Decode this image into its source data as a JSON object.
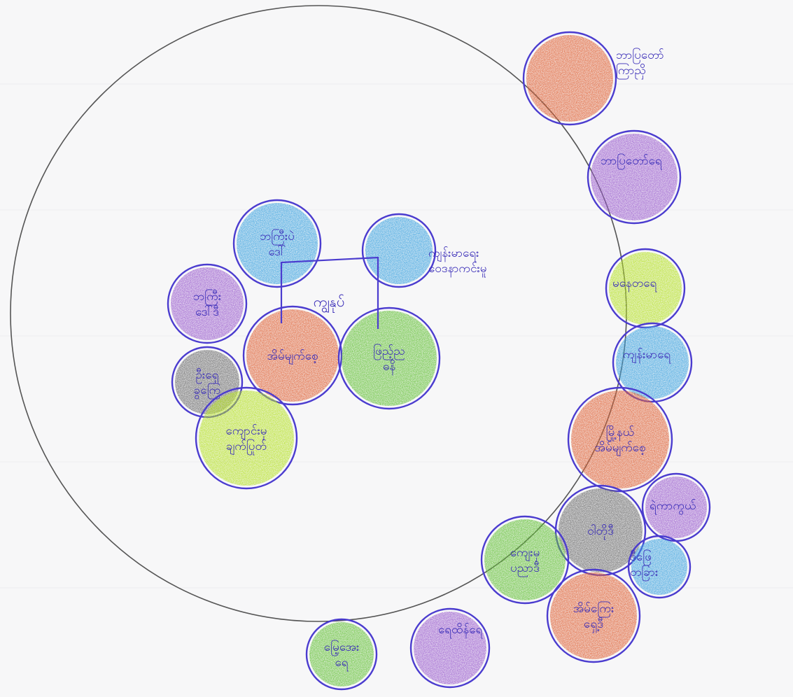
{
  "diagram": {
    "type": "ecomap",
    "center_label": "ကျွနုပ်",
    "colors": {
      "orange": "#e0653a",
      "purple": "#9c5fcf",
      "blue": "#3fa4e0",
      "green": "#66c23a",
      "lime": "#b7e22a",
      "gray": "#6e6e6e",
      "outline": "#4b3ccf",
      "boundary": "#555555"
    },
    "inside_nodes": [
      {
        "id": "n1",
        "label": "ဘကြီးပဲ ဒေါ်",
        "color": "blue"
      },
      {
        "id": "n2",
        "label": "ဘကြီး ဒေါ်ဒီ",
        "color": "purple"
      },
      {
        "id": "n3",
        "label": "အိမ်မျက်စေ့",
        "color": "orange"
      },
      {
        "id": "n4",
        "label": "ဖြည့်ည ဓနိ",
        "color": "green"
      },
      {
        "id": "n5",
        "label": "ဦးရှေ ခွကြေ",
        "color": "gray"
      },
      {
        "id": "n6",
        "label": "ကျောင်းမှ ချက်ပြုတ်",
        "color": "lime"
      },
      {
        "id": "n7",
        "label": "",
        "color": "blue"
      }
    ],
    "side_labels": [
      {
        "id": "n7",
        "text": "ကျန်းမာရေး ဝေဒနာကင်းမူ"
      }
    ],
    "outside_nodes": [
      {
        "id": "o1",
        "label": "",
        "side_text": "ဘာပြတော် ကြာညှိ",
        "color": "orange"
      },
      {
        "id": "o2",
        "label": "",
        "side_text": "ဘာပြတော်ရေ",
        "color": "purple"
      },
      {
        "id": "o3",
        "label": "",
        "side_text": "မနေတရေ",
        "color": "lime"
      },
      {
        "id": "o4",
        "label": "",
        "side_text": "ကျန်းမာရေ",
        "color": "blue"
      },
      {
        "id": "o5",
        "label": "မြို့နယ် အိမ်မျက်စေ့",
        "side_text": "",
        "color": "orange"
      },
      {
        "id": "o6",
        "label": "ဝါတိုဒီ",
        "side_text": "",
        "color": "gray"
      },
      {
        "id": "o7",
        "label": "",
        "side_text": "ရဲကာကွယ်",
        "color": "purple"
      },
      {
        "id": "o8",
        "label": "",
        "side_text": "ဒီဖြေ တခြား",
        "color": "blue"
      },
      {
        "id": "o9",
        "label": "ကျေးမှ ပညာဒီ",
        "side_text": "",
        "color": "green"
      },
      {
        "id": "o10",
        "label": "အိမ်ကြေး ရှေ့ဒီ",
        "side_text": "",
        "color": "orange"
      },
      {
        "id": "o11",
        "label": "",
        "side_text": "ရေထိန်ရေ",
        "color": "purple"
      },
      {
        "id": "o12",
        "label": "မြေ့အေး ရေ",
        "side_text": "",
        "color": "green"
      }
    ]
  }
}
